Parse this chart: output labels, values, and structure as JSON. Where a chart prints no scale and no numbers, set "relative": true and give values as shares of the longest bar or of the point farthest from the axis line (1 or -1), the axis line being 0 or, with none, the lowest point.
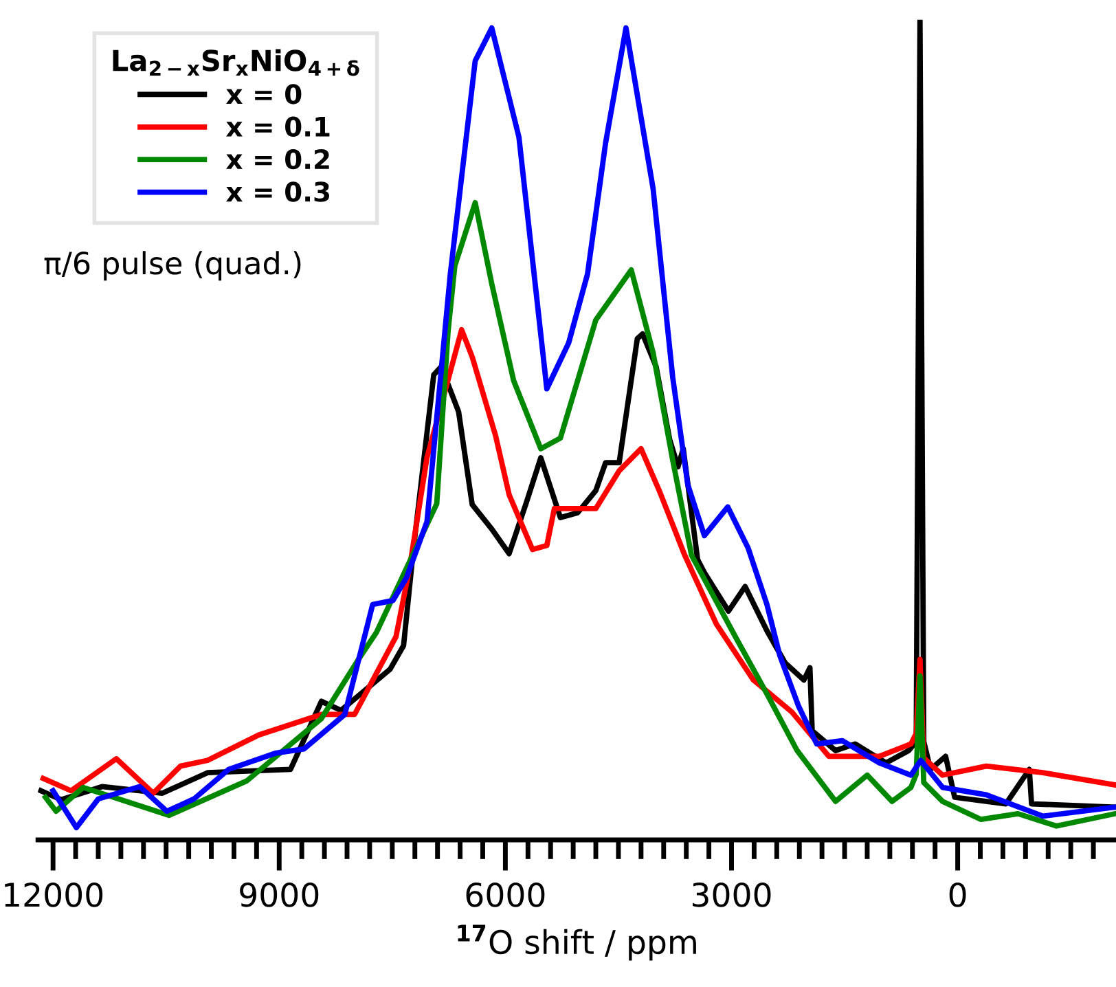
{
  "chart_data": {
    "type": "line",
    "relative": true,
    "xlabel": "$^{17}$O shift / ppm",
    "legend_title": "La$_{2−x}$Sr$_{x}$NiO$_{4+δ}$",
    "annotations": [
      "π/6 pulse (quad.)"
    ],
    "xlim": [
      12200,
      -2100
    ],
    "xticks": [
      12000,
      {
        "value": 11700,
        "label": null
      },
      {
        "value": 11400,
        "label": null
      },
      {
        "value": 11100,
        "label": null
      },
      {
        "value": 10800,
        "label": null
      },
      {
        "value": 10500,
        "label": null
      },
      {
        "value": 10200,
        "label": null
      },
      {
        "value": 9900,
        "label": null
      },
      {
        "value": 9600,
        "label": null
      },
      {
        "value": 9300,
        "label": null
      },
      9000,
      {
        "value": 8700,
        "label": null
      },
      {
        "value": 8400,
        "label": null
      },
      {
        "value": 8100,
        "label": null
      },
      {
        "value": 7800,
        "label": null
      },
      {
        "value": 7500,
        "label": null
      },
      {
        "value": 7200,
        "label": null
      },
      {
        "value": 6900,
        "label": null
      },
      {
        "value": 6600,
        "label": null
      },
      {
        "value": 6300,
        "label": null
      },
      6000,
      {
        "value": 5700,
        "label": null
      },
      {
        "value": 5400,
        "label": null
      },
      {
        "value": 5100,
        "label": null
      },
      {
        "value": 4800,
        "label": null
      },
      {
        "value": 4500,
        "label": null
      },
      {
        "value": 4200,
        "label": null
      },
      {
        "value": 3900,
        "label": null
      },
      {
        "value": 3600,
        "label": null
      },
      {
        "value": 3300,
        "label": null
      },
      3000,
      {
        "value": 2700,
        "label": null
      },
      {
        "value": 2400,
        "label": null
      },
      {
        "value": 2100,
        "label": null
      },
      {
        "value": 1800,
        "label": null
      },
      {
        "value": 1500,
        "label": null
      },
      {
        "value": 1200,
        "label": null
      },
      {
        "value": 900,
        "label": null
      },
      {
        "value": 600,
        "label": null
      },
      {
        "value": 300,
        "label": null
      },
      0,
      {
        "value": -300,
        "label": null
      },
      {
        "value": -600,
        "label": null
      },
      {
        "value": -900,
        "label": null
      },
      {
        "value": -1200,
        "label": null
      },
      {
        "value": -1500,
        "label": null
      },
      {
        "value": -1800,
        "label": null
      }
    ],
    "tick_labels": "x",
    "grid": false,
    "legend": "top left",
    "marker": "none",
    "line_style": "solid",
    "series": [
      {
        "name": "x = 0",
        "color": "#000000",
        "x": [
          12160,
          11890,
          11350,
          10550,
          9950,
          8850,
          8440,
          8180,
          7530,
          7350,
          7220,
          6950,
          6850,
          6620,
          6440,
          6180,
          5950,
          5730,
          5530,
          5270,
          5040,
          4800,
          4670,
          4490,
          4250,
          4180,
          4000,
          3820,
          3710,
          3640,
          3450,
          3360,
          3040,
          2820,
          2530,
          2290,
          2040,
          1960,
          1930,
          1620,
          1360,
          950,
          650,
          550,
          500,
          450,
          360,
          160,
          40,
          -640,
          -950,
          -980,
          -2090
        ],
        "values": [
          0.06,
          0.049,
          0.065,
          0.057,
          0.082,
          0.086,
          0.169,
          0.158,
          0.208,
          0.237,
          0.354,
          0.567,
          0.577,
          0.522,
          0.409,
          0.379,
          0.349,
          0.409,
          0.466,
          0.393,
          0.399,
          0.426,
          0.46,
          0.46,
          0.611,
          0.617,
          0.577,
          0.488,
          0.455,
          0.477,
          0.342,
          0.326,
          0.279,
          0.309,
          0.255,
          0.216,
          0.195,
          0.21,
          0.133,
          0.109,
          0.117,
          0.094,
          0.109,
          0.12,
          1.0,
          0.12,
          0.086,
          0.102,
          0.052,
          0.044,
          0.086,
          0.044,
          0.04
        ]
      },
      {
        "name": "x = 0.1",
        "color": "#ff0000",
        "x": [
          12130,
          11760,
          11160,
          10670,
          10310,
          9950,
          9270,
          8440,
          8000,
          7450,
          7270,
          7040,
          6580,
          6440,
          6130,
          5950,
          5640,
          5450,
          5350,
          4800,
          4490,
          4200,
          3950,
          3620,
          3200,
          2710,
          2200,
          1710,
          1040,
          620,
          550,
          500,
          450,
          200,
          -380,
          -1130,
          -2090
        ],
        "values": [
          0.075,
          0.06,
          0.099,
          0.057,
          0.09,
          0.097,
          0.128,
          0.153,
          0.153,
          0.248,
          0.332,
          0.466,
          0.622,
          0.589,
          0.493,
          0.421,
          0.354,
          0.359,
          0.404,
          0.404,
          0.45,
          0.477,
          0.424,
          0.347,
          0.263,
          0.195,
          0.156,
          0.102,
          0.102,
          0.117,
          0.13,
          0.22,
          0.1,
          0.079,
          0.09,
          0.082,
          0.067
        ]
      },
      {
        "name": "x = 0.2",
        "color": "#008800",
        "x": [
          12100,
          11960,
          11600,
          10460,
          9430,
          8440,
          7950,
          7710,
          6910,
          6760,
          6670,
          6400,
          6180,
          5890,
          5530,
          5270,
          4800,
          4330,
          4040,
          3780,
          3530,
          2950,
          2530,
          2130,
          1620,
          1200,
          870,
          620,
          550,
          500,
          450,
          200,
          -310,
          -800,
          -1310,
          -2090
        ],
        "values": [
          0.052,
          0.035,
          0.064,
          0.03,
          0.072,
          0.148,
          0.22,
          0.253,
          0.41,
          0.62,
          0.7,
          0.777,
          0.678,
          0.56,
          0.477,
          0.49,
          0.634,
          0.695,
          0.594,
          0.463,
          0.347,
          0.248,
          0.178,
          0.109,
          0.047,
          0.079,
          0.047,
          0.064,
          0.08,
          0.2,
          0.07,
          0.047,
          0.025,
          0.032,
          0.017,
          0.032
        ]
      },
      {
        "name": "x = 0.3",
        "color": "#0000ff",
        "x": [
          12000,
          11690,
          11400,
          10850,
          10490,
          10130,
          9670,
          9040,
          8670,
          8130,
          7760,
          7490,
          7310,
          7040,
          6730,
          6400,
          6180,
          5820,
          5450,
          5160,
          4910,
          4670,
          4400,
          4040,
          3780,
          3580,
          3360,
          3050,
          2780,
          2530,
          2360,
          2110,
          1870,
          1530,
          1040,
          620,
          490,
          200,
          -380,
          -1130,
          -2090
        ],
        "values": [
          0.06,
          0.015,
          0.05,
          0.065,
          0.035,
          0.05,
          0.086,
          0.106,
          0.111,
          0.153,
          0.287,
          0.292,
          0.32,
          0.388,
          0.69,
          0.95,
          0.99,
          0.857,
          0.55,
          0.606,
          0.69,
          0.85,
          0.99,
          0.794,
          0.564,
          0.433,
          0.371,
          0.406,
          0.356,
          0.287,
          0.225,
          0.163,
          0.117,
          0.121,
          0.094,
          0.079,
          0.097,
          0.064,
          0.055,
          0.029,
          0.04
        ]
      }
    ]
  }
}
